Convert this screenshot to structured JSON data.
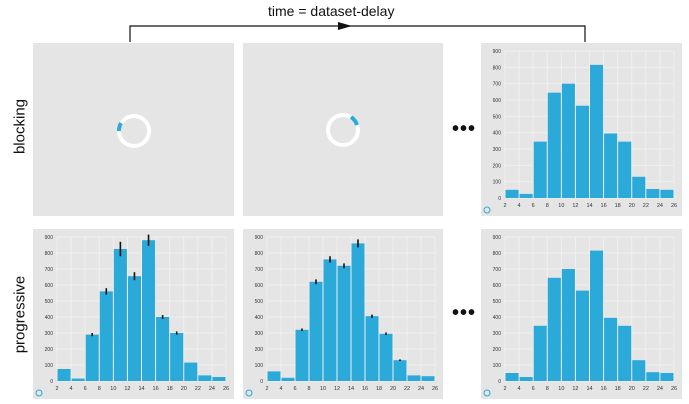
{
  "title": "time = dataset-delay",
  "rows": {
    "blocking": "blocking",
    "progressive": "progressive"
  },
  "ellipsis": "•••",
  "colors": {
    "bar": "#2ba9d8",
    "panel": "#e5e5e5",
    "grid": "#f2f2f2",
    "error": "#111111",
    "spinner_track": "#ffffff",
    "spinner_arc": "#2ba9d8"
  },
  "axis": {
    "xticks": [
      "2",
      "4",
      "6",
      "8",
      "10",
      "12",
      "14",
      "16",
      "18",
      "20",
      "22",
      "24",
      "26"
    ],
    "yticks": [
      "0",
      "100",
      "200",
      "300",
      "400",
      "500",
      "600",
      "700",
      "800",
      "900"
    ]
  },
  "chart_data": [
    {
      "type": "bar",
      "id": "blocking-final",
      "categories": [
        "2-4",
        "4-6",
        "6-8",
        "8-10",
        "10-12",
        "12-14",
        "14-16",
        "16-18",
        "18-20",
        "20-22",
        "22-24",
        "24-26"
      ],
      "x_edges": [
        2,
        4,
        6,
        8,
        10,
        12,
        14,
        16,
        18,
        20,
        22,
        24,
        26
      ],
      "values": [
        50,
        25,
        345,
        645,
        700,
        565,
        815,
        395,
        345,
        130,
        55,
        50
      ],
      "ylim": [
        0,
        900
      ],
      "xlim": [
        2,
        26
      ],
      "grid": true
    },
    {
      "type": "bar",
      "id": "progressive-1",
      "categories": [
        "2-4",
        "4-6",
        "6-8",
        "8-10",
        "10-12",
        "12-14",
        "14-16",
        "16-18",
        "18-20",
        "20-22",
        "22-24",
        "24-26"
      ],
      "x_edges": [
        2,
        4,
        6,
        8,
        10,
        12,
        14,
        16,
        18,
        20,
        22,
        24,
        26
      ],
      "values": [
        75,
        15,
        290,
        560,
        825,
        655,
        880,
        400,
        300,
        115,
        35,
        25
      ],
      "errors": [
        0,
        0,
        10,
        20,
        45,
        25,
        35,
        12,
        10,
        0,
        0,
        0
      ],
      "ylim": [
        0,
        900
      ],
      "xlim": [
        2,
        26
      ],
      "grid": true
    },
    {
      "type": "bar",
      "id": "progressive-2",
      "categories": [
        "2-4",
        "4-6",
        "6-8",
        "8-10",
        "10-12",
        "12-14",
        "14-16",
        "16-18",
        "18-20",
        "20-22",
        "22-24",
        "24-26"
      ],
      "x_edges": [
        2,
        4,
        6,
        8,
        10,
        12,
        14,
        16,
        18,
        20,
        22,
        24,
        26
      ],
      "values": [
        60,
        20,
        320,
        620,
        760,
        720,
        860,
        405,
        295,
        130,
        35,
        30
      ],
      "errors": [
        0,
        0,
        8,
        15,
        20,
        15,
        25,
        10,
        8,
        5,
        0,
        0
      ],
      "ylim": [
        0,
        900
      ],
      "xlim": [
        2,
        26
      ],
      "grid": true
    },
    {
      "type": "bar",
      "id": "progressive-final",
      "categories": [
        "2-4",
        "4-6",
        "6-8",
        "8-10",
        "10-12",
        "12-14",
        "14-16",
        "16-18",
        "18-20",
        "20-22",
        "22-24",
        "24-26"
      ],
      "x_edges": [
        2,
        4,
        6,
        8,
        10,
        12,
        14,
        16,
        18,
        20,
        22,
        24,
        26
      ],
      "values": [
        50,
        25,
        345,
        645,
        700,
        565,
        815,
        395,
        345,
        130,
        55,
        50
      ],
      "ylim": [
        0,
        900
      ],
      "xlim": [
        2,
        26
      ],
      "grid": true
    }
  ]
}
